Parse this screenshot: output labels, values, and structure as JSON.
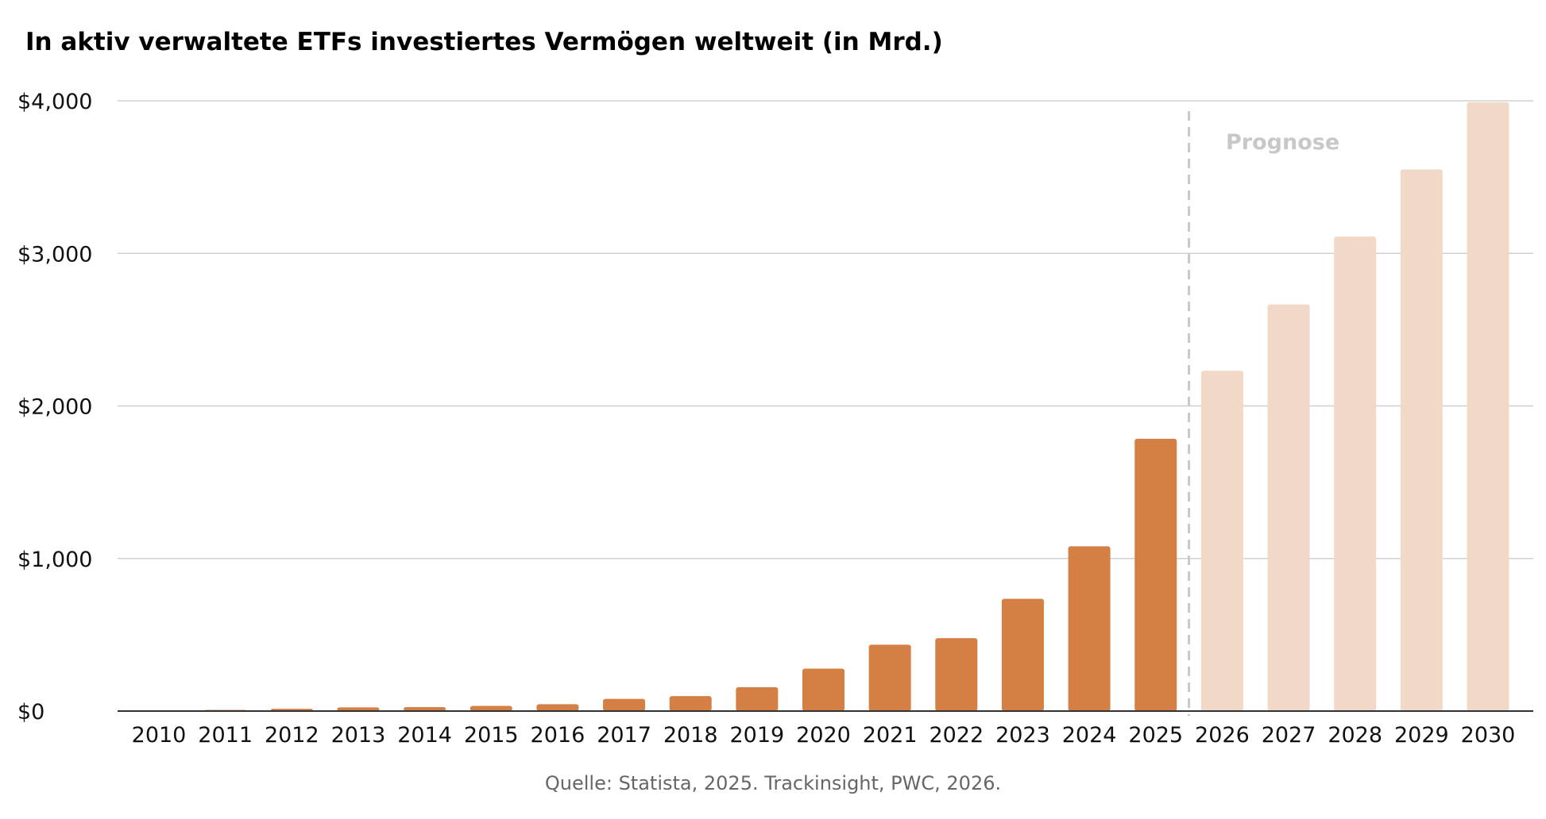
{
  "chart_data": {
    "type": "bar",
    "title": "In aktiv verwaltete ETFs investiertes Vermögen weltweit (in Mrd.)",
    "categories": [
      "2010",
      "2011",
      "2012",
      "2013",
      "2014",
      "2015",
      "2016",
      "2017",
      "2018",
      "2019",
      "2020",
      "2021",
      "2022",
      "2023",
      "2024",
      "2025",
      "2026",
      "2027",
      "2028",
      "2029",
      "2030"
    ],
    "values": [
      5,
      8,
      15,
      24,
      26,
      34,
      45,
      80,
      98,
      157,
      278,
      435,
      478,
      736,
      1080,
      1785,
      2230,
      2665,
      3110,
      3550,
      3990
    ],
    "forecast_from_index": 16,
    "forecast_label": "Prognose",
    "ylim": [
      0,
      4000
    ],
    "yticks": [
      0,
      1000,
      2000,
      3000,
      4000
    ],
    "ytick_labels": [
      "$0",
      "$1,000",
      "$2,000",
      "$3,000",
      "$4,000"
    ],
    "grid": true,
    "colors": {
      "actual": "#d47f44",
      "forecast": "#f2d8c7",
      "grid": "#d0d0d0",
      "forecast_divider": "#c8c8c8",
      "axis": "#333333"
    },
    "source": "Quelle: Statista, 2025. Trackinsight, PWC, 2026."
  }
}
